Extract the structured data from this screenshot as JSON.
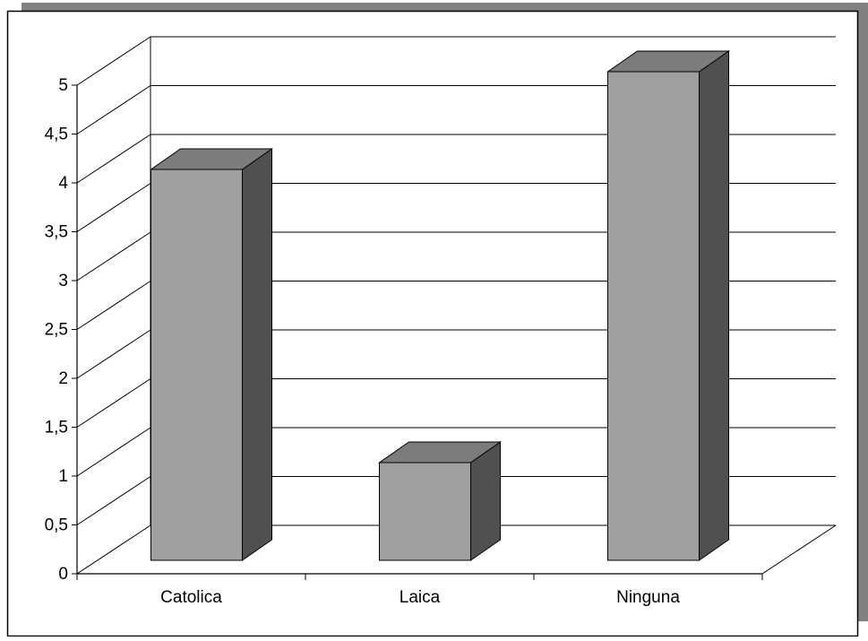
{
  "chart_data": {
    "type": "bar",
    "categories": [
      "Catolica",
      "Laica",
      "Ninguna"
    ],
    "values": [
      4,
      1,
      5
    ],
    "title": "",
    "xlabel": "",
    "ylabel": "",
    "ylim": [
      0,
      5
    ],
    "yticks": [
      "0",
      "0,5",
      "1",
      "1,5",
      "2",
      "2,5",
      "3",
      "3,5",
      "4",
      "4,5",
      "5"
    ],
    "grid": true,
    "style": "3d-column"
  },
  "colors": {
    "bar_front": "#a0a0a0",
    "bar_top": "#7c7c7c",
    "bar_side": "#505050",
    "frame_shadow": "#808080",
    "grid": "#000000"
  }
}
